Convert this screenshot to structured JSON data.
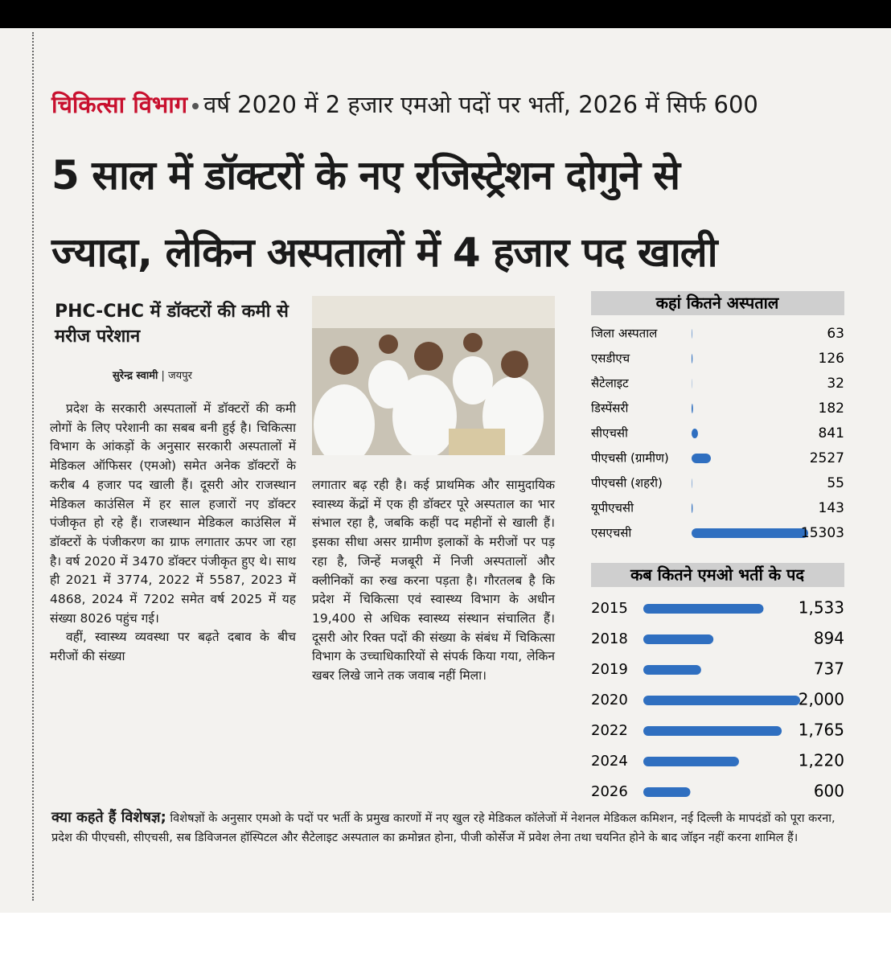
{
  "kicker": {
    "section": "चिकित्सा विभाग",
    "text": "वर्ष 2020 में 2 हजार एमओ पदों पर भर्ती, 2026 में सिर्फ 600"
  },
  "headline": [
    "5 साल में डॉक्टरों के नए रजिस्ट्रेशन दोगुने से",
    "ज्यादा, लेकिन अस्पतालों में 4 हजार पद खाली"
  ],
  "subhead": "PHC-CHC में डॉक्टरों की कमी से मरीज परेशान",
  "byline": {
    "author": "सुरेन्द्र स्वामी",
    "place": "जयपुर"
  },
  "body": {
    "column_1": [
      "प्रदेश के सरकारी अस्पतालों में डॉक्टरों की कमी लोगों के लिए परेशानी का सबब बनी हुई है। चिकित्सा विभाग के आंकड़ों के अनुसार सरकारी अस्पतालों में मेडिकल ऑफिसर (एमओ) समेत अनेक डॉक्टरों के करीब 4 हजार पद खाली हैं। दूसरी ओर राजस्थान मेडिकल काउंसिल में हर साल हजारों नए डॉक्टर पंजीकृत हो रहे हैं। राजस्थान मेडिकल काउंसिल में डॉक्टरों के पंजीकरण का ग्राफ लगातार ऊपर जा रहा है। वर्ष 2020 में 3470 डॉक्टर पंजीकृत हुए थे। साथ ही 2021 में 3774, 2022 में 5587, 2023 में 4868, 2024 में 7202 समेत वर्ष 2025 में यह संख्या 8026 पहुंच गई।",
      "वहीं, स्वास्थ्य व्यवस्था पर बढ़ते दबाव के बीच मरीजों की संख्या"
    ],
    "column_2": [
      "लगातार बढ़ रही है। कई प्राथमिक और सामुदायिक स्वास्थ्य केंद्रों में एक ही डॉक्टर पूरे अस्पताल का भार संभाल रहा है, जबकि कहीं पद महीनों से खाली हैं। इसका सीधा असर ग्रामीण इलाकों के मरीजों पर पड़ रहा है, जिन्हें मजबूरी में निजी अस्पतालों और क्लीनिकों का रुख करना पड़ता है। गौरतलब है कि प्रदेश में चिकित्सा एवं स्वास्थ्य विभाग के अधीन 19,400 से अधिक स्वास्थ्य संस्थान संचालित हैं। दूसरी ओर रिक्त पदों की संख्या के संबंध में चिकित्सा विभाग के उच्चाधिकारियों से संपर्क किया गया, लेकिन खबर लिखे जाने तक जवाब नहीं मिला।"
    ]
  },
  "expert": {
    "label": "क्या कहते हैं विशेषज्ञ;",
    "text": "विशेषज्ञों के अनुसार एमओ के पदों पर भर्ती के प्रमुख कारणों में नए खुल रहे मेडिकल कॉलेजों में नेशनल मेडिकल कमिशन, नई दिल्ली के मापदंडों को पूरा करना, प्रदेश की पीएचसी, सीएचसी, सब डिविजनल हॉस्पिटल और सैटेलाइट अस्पताल का क्रमोन्नत होना, पीजी कोर्सेज में प्रवेश लेना तथा चयनित होने के बाद जॉइन नहीं करना शामिल हैं।"
  },
  "chart_data": [
    {
      "type": "bar",
      "orientation": "horizontal",
      "title": "कहां कितने अस्पताल",
      "color": "#2f6fc0",
      "categories": [
        "जिला अस्पताल",
        "एसडीएच",
        "सैटेलाइट",
        "डिस्पेंसरी",
        "सीएचसी",
        "पीएचसी (ग्रामीण)",
        "पीएचसी (शहरी)",
        "यूपीएचसी",
        "एसएचसी"
      ],
      "values": [
        63,
        126,
        32,
        182,
        841,
        2527,
        55,
        143,
        15303
      ]
    },
    {
      "type": "bar",
      "orientation": "horizontal",
      "title": "कब कितने एमओ भर्ती के पद",
      "color": "#2f6fc0",
      "categories": [
        "2015",
        "2018",
        "2019",
        "2020",
        "2022",
        "2024",
        "2026"
      ],
      "values": [
        1533,
        894,
        737,
        2000,
        1765,
        1220,
        600
      ],
      "value_labels": [
        "1,533",
        "894",
        "737",
        "2,000",
        "1,765",
        "1,220",
        "600"
      ]
    }
  ]
}
